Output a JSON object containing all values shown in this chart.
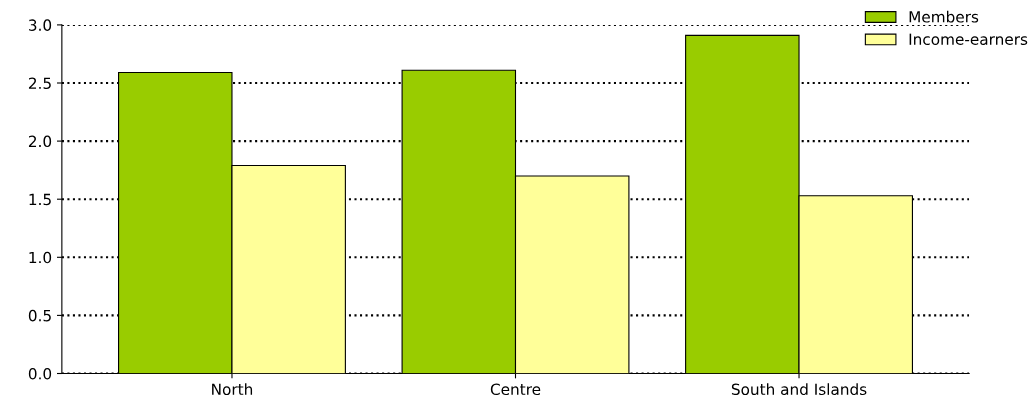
{
  "chart_data": {
    "type": "bar",
    "categories": [
      "North",
      "Centre",
      "South and Islands"
    ],
    "series": [
      {
        "name": "Members",
        "color": "#99cc00",
        "values": [
          2.59,
          2.61,
          2.91
        ]
      },
      {
        "name": "Income-earners",
        "color": "#ffff99",
        "values": [
          1.79,
          1.7,
          1.53
        ]
      }
    ],
    "ylim": [
      0,
      3
    ],
    "yticks": [
      {
        "value": 0,
        "label": "0.0"
      },
      {
        "value": 0.5,
        "label": "0.5"
      },
      {
        "value": 1,
        "label": "1.0"
      },
      {
        "value": 1.5,
        "label": "1.5"
      },
      {
        "value": 2,
        "label": "2.0"
      },
      {
        "value": 2.5,
        "label": "2.5"
      },
      {
        "value": 3,
        "label": "3.0"
      }
    ],
    "grid": "y",
    "line_style": "dotted",
    "legend": "top right"
  }
}
